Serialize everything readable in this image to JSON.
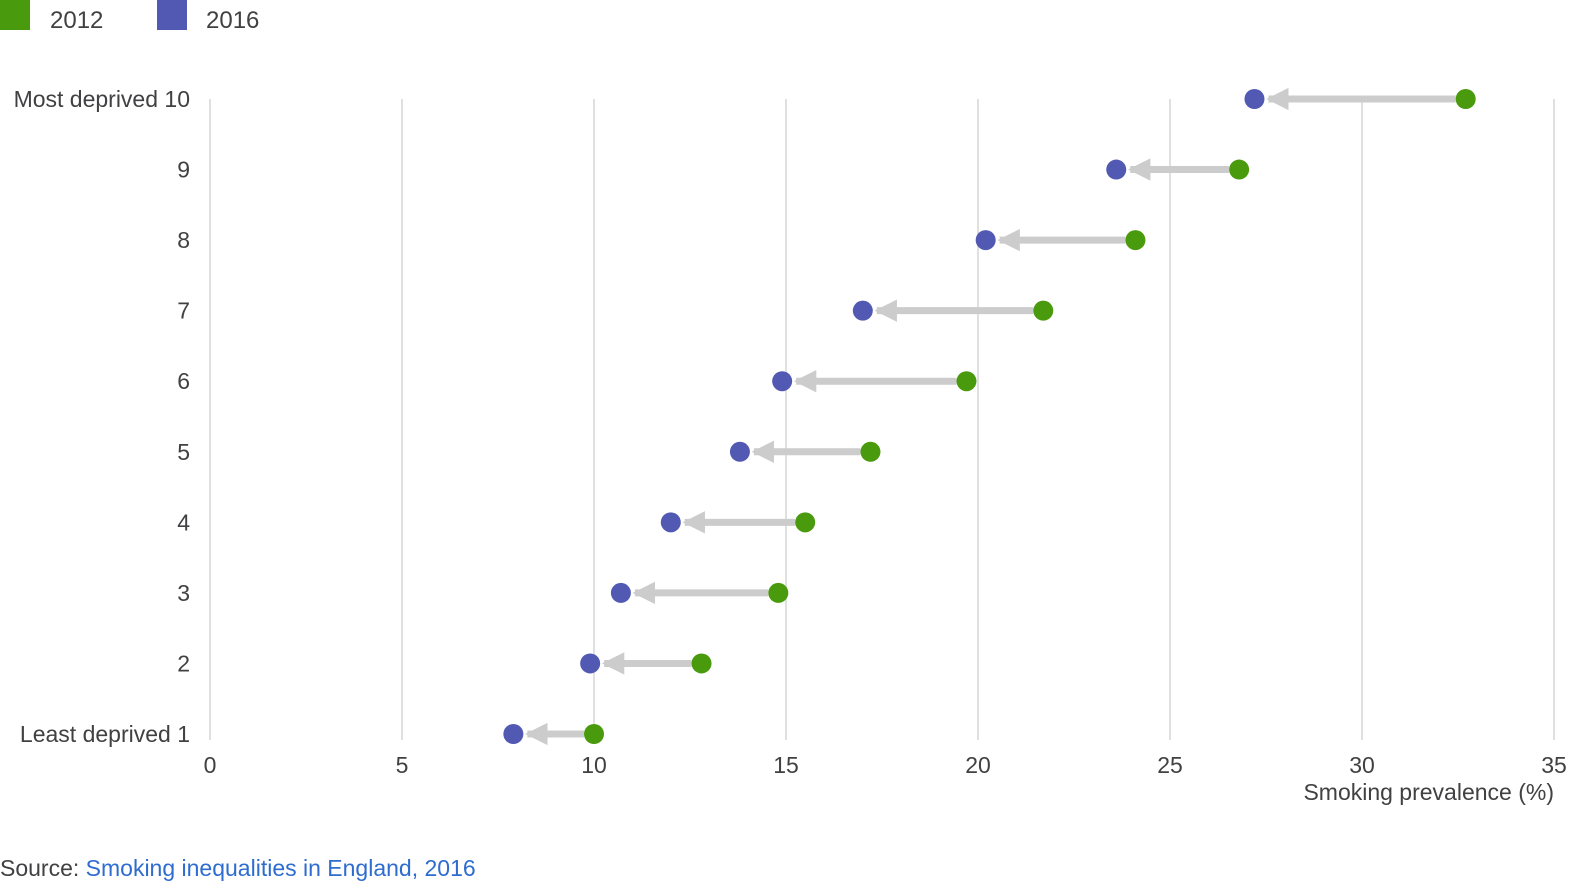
{
  "legend": {
    "items": [
      {
        "label": "2012",
        "color": "#4a9a0e"
      },
      {
        "label": "2016",
        "color": "#5159b3"
      }
    ]
  },
  "source": {
    "prefix": "Source: ",
    "link_text": "Smoking inequalities in England, 2016"
  },
  "chart_data": {
    "type": "dumbbell",
    "xlabel": "Smoking prevalence (%)",
    "xlim": [
      0,
      35
    ],
    "x_ticks": [
      0,
      5,
      10,
      15,
      20,
      25,
      30,
      35
    ],
    "grid": "vertical",
    "legend_placement": "top-left",
    "categories": [
      "Most deprived 10",
      "9",
      "8",
      "7",
      "6",
      "5",
      "4",
      "3",
      "2",
      "Least deprived 1"
    ],
    "series": [
      {
        "name": "2012",
        "color": "#4a9a0e",
        "values": [
          32.7,
          26.8,
          24.1,
          21.7,
          19.7,
          17.2,
          15.5,
          14.8,
          12.8,
          10.0
        ]
      },
      {
        "name": "2016",
        "color": "#5159b3",
        "values": [
          27.2,
          23.6,
          20.2,
          17.0,
          14.9,
          13.8,
          12.0,
          10.7,
          9.9,
          7.9
        ]
      }
    ],
    "arrow_color": "#cccccc",
    "gridline_color": "#e0e0e0"
  }
}
